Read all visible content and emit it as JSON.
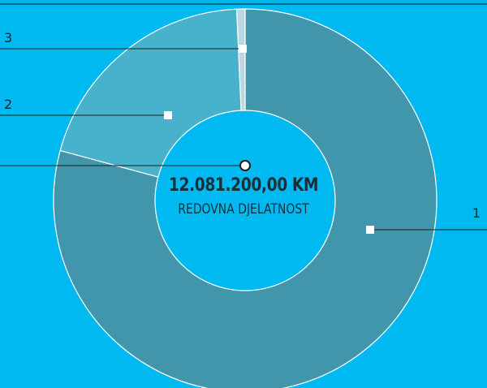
{
  "chart_data": {
    "type": "pie",
    "variant": "donut",
    "slices": [
      {
        "label": "1",
        "value": 79.2,
        "color": "#4196ab"
      },
      {
        "label": "2",
        "value": 20.1,
        "color": "#48b1cb"
      },
      {
        "label": "3",
        "value": 0.7,
        "color": "#b9d8e3"
      }
    ],
    "center": {
      "amount": "12.081.200,00 KM",
      "caption": "REDOVNA DJELATNOST"
    }
  },
  "colors": {
    "background": "#00b9f1",
    "hole": "#00b9f1",
    "outline": "#ffffff",
    "leader": "#1d1d1b"
  }
}
